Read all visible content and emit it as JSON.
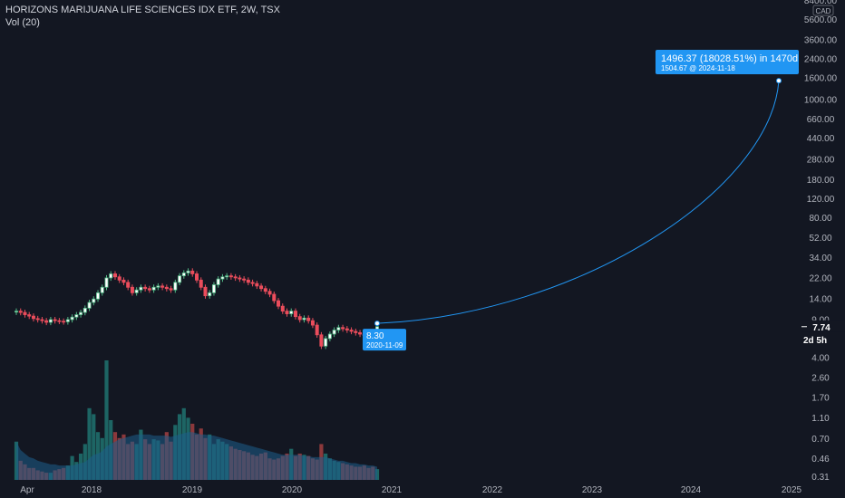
{
  "header": {
    "title": "HORIZONS MARIJUANA LIFE SCIENCES IDX ETF, 2W, TSX",
    "indicator": "Vol (20)"
  },
  "colors": {
    "background": "#131722",
    "up": "#26a69a",
    "down": "#ef5350",
    "up_candle": "#53b987",
    "down_candle": "#eb4d5c",
    "accent": "#2196f3",
    "volume_ma": "#1e5f8c",
    "axis_text": "#b2b5be",
    "price_tag": "#ffffff"
  },
  "chart_data": {
    "type": "candlestick",
    "y_scale": "log",
    "y_ticks": [
      "8400.00",
      "5600.00",
      "3600.00",
      "2400.00",
      "1600.00",
      "1000.00",
      "660.00",
      "440.00",
      "280.00",
      "180.00",
      "120.00",
      "80.00",
      "52.00",
      "34.00",
      "22.00",
      "14.00",
      "9.00",
      "4.00",
      "2.60",
      "1.70",
      "1.10",
      "0.70",
      "0.46",
      "0.31"
    ],
    "currency": "CAD",
    "x_ticks": [
      "Apr",
      "2018",
      "2019",
      "2020",
      "2021",
      "2022",
      "2023",
      "2024",
      "2025"
    ],
    "last_price": "7.74",
    "countdown": "2d 5h",
    "start_point": {
      "price_label": "8.30",
      "date": "2020-11-09"
    },
    "end_point": {
      "label": "1496.37 (18028.51%) in 1470d",
      "sublabel": "1504.67 @ 2024-11-18"
    },
    "closes": [
      10.8,
      10.5,
      10.0,
      9.7,
      9.2,
      9.0,
      8.8,
      8.5,
      9.0,
      8.8,
      8.7,
      8.6,
      9.0,
      9.5,
      10.0,
      10.5,
      11.5,
      13.0,
      14.0,
      16.0,
      18.0,
      22.0,
      24.0,
      22.5,
      21.0,
      20.0,
      18.0,
      16.0,
      17.0,
      18.0,
      17.5,
      17.0,
      18.0,
      18.5,
      18.0,
      17.5,
      17.0,
      20.0,
      23.0,
      24.5,
      25.5,
      24.0,
      21.0,
      18.0,
      15.0,
      16.0,
      19.0,
      21.5,
      22.5,
      23.0,
      22.5,
      22.0,
      21.5,
      21.0,
      20.0,
      19.5,
      18.5,
      17.5,
      16.5,
      15.5,
      13.5,
      12.0,
      10.8,
      10.2,
      10.8,
      9.6,
      9.0,
      9.3,
      8.8,
      8.0,
      6.5,
      5.1,
      6.0,
      6.6,
      7.2,
      7.6,
      7.4,
      7.2,
      7.0,
      6.8,
      6.6,
      6.4,
      6.2,
      6.0,
      7.74
    ],
    "volumes": [
      0.32,
      0.16,
      0.13,
      0.1,
      0.1,
      0.08,
      0.07,
      0.06,
      0.06,
      0.08,
      0.09,
      0.1,
      0.12,
      0.2,
      0.15,
      0.22,
      0.3,
      0.6,
      0.55,
      0.4,
      0.35,
      1.0,
      0.5,
      0.4,
      0.35,
      0.38,
      0.3,
      0.32,
      0.3,
      0.42,
      0.34,
      0.3,
      0.34,
      0.33,
      0.3,
      0.4,
      0.32,
      0.46,
      0.55,
      0.6,
      0.52,
      0.47,
      0.38,
      0.43,
      0.35,
      0.38,
      0.3,
      0.34,
      0.32,
      0.3,
      0.28,
      0.26,
      0.25,
      0.24,
      0.23,
      0.21,
      0.2,
      0.22,
      0.23,
      0.18,
      0.17,
      0.18,
      0.2,
      0.22,
      0.26,
      0.2,
      0.22,
      0.21,
      0.2,
      0.18,
      0.17,
      0.3,
      0.22,
      0.18,
      0.16,
      0.15,
      0.14,
      0.13,
      0.12,
      0.11,
      0.11,
      0.12,
      0.1,
      0.11,
      0.09
    ],
    "volume_ma": [
      0.32,
      0.25,
      0.22,
      0.19,
      0.18,
      0.16,
      0.15,
      0.14,
      0.13,
      0.13,
      0.12,
      0.12,
      0.12,
      0.12,
      0.13,
      0.14,
      0.15,
      0.18,
      0.21,
      0.22,
      0.24,
      0.28,
      0.3,
      0.32,
      0.34,
      0.35,
      0.36,
      0.37,
      0.38,
      0.38,
      0.38,
      0.38,
      0.37,
      0.37,
      0.37,
      0.37,
      0.36,
      0.37,
      0.38,
      0.39,
      0.4,
      0.4,
      0.39,
      0.38,
      0.38,
      0.37,
      0.37,
      0.36,
      0.35,
      0.34,
      0.33,
      0.32,
      0.31,
      0.3,
      0.29,
      0.28,
      0.27,
      0.26,
      0.25,
      0.24,
      0.23,
      0.22,
      0.21,
      0.21,
      0.21,
      0.21,
      0.21,
      0.2,
      0.2,
      0.19,
      0.19,
      0.19,
      0.19,
      0.18,
      0.17,
      0.16,
      0.16,
      0.15,
      0.14,
      0.14,
      0.13,
      0.13,
      0.12,
      0.12,
      0.11
    ]
  }
}
